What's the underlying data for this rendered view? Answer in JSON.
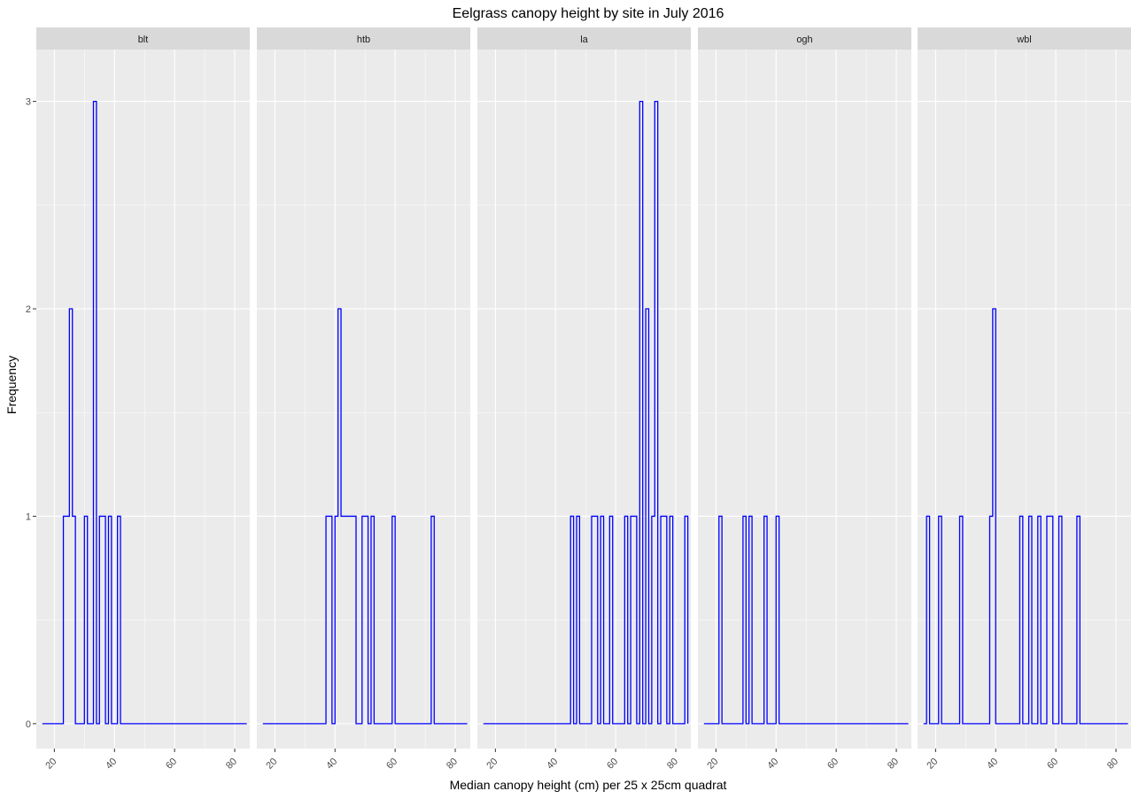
{
  "chart_data": {
    "type": "histogram",
    "title": "Eelgrass canopy height by site in July 2016",
    "xlabel": "Median canopy height (cm) per 25 x 25cm quadrat",
    "ylabel": "Frequency",
    "xlim": [
      14,
      85
    ],
    "ylim": [
      0,
      3
    ],
    "x_ticks": [
      20,
      40,
      60,
      80
    ],
    "y_ticks": [
      0,
      1,
      2,
      3
    ],
    "bin_width": 1,
    "grid": true,
    "colors": {
      "outline": "#0000ff",
      "panel_bg": "#ebebeb",
      "strip_bg": "#d9d9d9",
      "grid": "#ffffff"
    },
    "facets": [
      {
        "name": "blt",
        "bins": [
          [
            23,
            1
          ],
          [
            24,
            1
          ],
          [
            25,
            2
          ],
          [
            26,
            1
          ],
          [
            30,
            1
          ],
          [
            33,
            3
          ],
          [
            35,
            1
          ],
          [
            36,
            1
          ],
          [
            38,
            1
          ],
          [
            41,
            1
          ]
        ]
      },
      {
        "name": "htb",
        "bins": [
          [
            37,
            1
          ],
          [
            38,
            1
          ],
          [
            40,
            1
          ],
          [
            41,
            2
          ],
          [
            42,
            1
          ],
          [
            43,
            1
          ],
          [
            44,
            1
          ],
          [
            45,
            1
          ],
          [
            46,
            1
          ],
          [
            49,
            1
          ],
          [
            50,
            1
          ],
          [
            52,
            1
          ],
          [
            59,
            1
          ],
          [
            72,
            1
          ]
        ]
      },
      {
        "name": "la",
        "bins": [
          [
            45,
            1
          ],
          [
            47,
            1
          ],
          [
            52,
            1
          ],
          [
            53,
            1
          ],
          [
            55,
            1
          ],
          [
            58,
            1
          ],
          [
            63,
            1
          ],
          [
            65,
            1
          ],
          [
            66,
            1
          ],
          [
            68,
            3
          ],
          [
            70,
            2
          ],
          [
            72,
            1
          ],
          [
            73,
            3
          ],
          [
            75,
            1
          ],
          [
            76,
            1
          ],
          [
            78,
            1
          ],
          [
            83,
            1
          ]
        ]
      },
      {
        "name": "ogh",
        "bins": [
          [
            21,
            1
          ],
          [
            29,
            1
          ],
          [
            31,
            1
          ],
          [
            36,
            1
          ],
          [
            40,
            1
          ]
        ]
      },
      {
        "name": "wbl",
        "bins": [
          [
            17,
            1
          ],
          [
            21,
            1
          ],
          [
            28,
            1
          ],
          [
            38,
            1
          ],
          [
            39,
            2
          ],
          [
            48,
            1
          ],
          [
            51,
            1
          ],
          [
            54,
            1
          ],
          [
            57,
            1
          ],
          [
            58,
            1
          ],
          [
            61,
            1
          ],
          [
            67,
            1
          ]
        ]
      }
    ]
  }
}
